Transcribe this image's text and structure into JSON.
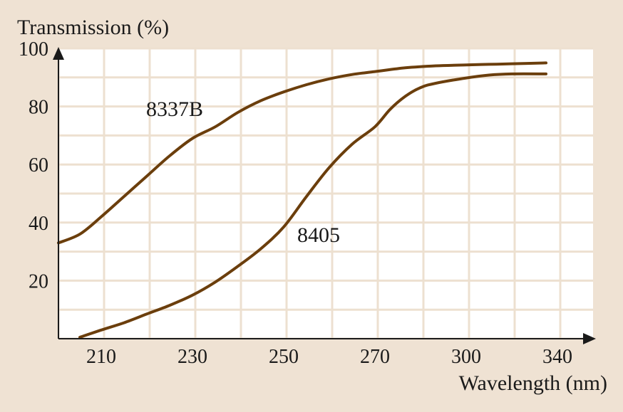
{
  "colors": {
    "background": "#efe2d3",
    "plot_area": "#ffffff",
    "grid": "#ede0d0",
    "axis": "#1a1a1a",
    "curve": "#6b3e0c"
  },
  "chart_data": {
    "type": "line",
    "ylabel": "Transmission (%)",
    "xlabel": "Wavelength (nm)",
    "x_ticks": [
      {
        "label": "210",
        "value": 210
      },
      {
        "label": "230",
        "value": 230
      },
      {
        "label": "250",
        "value": 250
      },
      {
        "label": "270",
        "value": 270
      },
      {
        "label": "300",
        "value": 300
      },
      {
        "label": "340",
        "value": 340
      }
    ],
    "y_ticks": [
      {
        "label": "20",
        "value": 20
      },
      {
        "label": "40",
        "value": 40
      },
      {
        "label": "60",
        "value": 60
      },
      {
        "label": "80",
        "value": 80
      },
      {
        "label": "100",
        "value": 100
      }
    ],
    "ylim": [
      0,
      100
    ],
    "grid": true,
    "series": [
      {
        "name": "8337B",
        "points": [
          [
            200,
            33
          ],
          [
            205,
            36
          ],
          [
            210,
            42
          ],
          [
            215,
            49
          ],
          [
            220,
            56
          ],
          [
            225,
            63
          ],
          [
            230,
            69
          ],
          [
            235,
            73
          ],
          [
            240,
            78
          ],
          [
            245,
            82
          ],
          [
            250,
            85
          ],
          [
            255,
            87.5
          ],
          [
            260,
            89.5
          ],
          [
            265,
            91
          ],
          [
            270,
            92
          ],
          [
            280,
            93.3
          ],
          [
            290,
            94
          ],
          [
            300,
            94.3
          ],
          [
            310,
            94.5
          ],
          [
            320,
            94.7
          ],
          [
            335,
            95
          ]
        ]
      },
      {
        "name": "8405",
        "points": [
          [
            205,
            0.5
          ],
          [
            210,
            3
          ],
          [
            215,
            5.5
          ],
          [
            220,
            8.5
          ],
          [
            225,
            11.5
          ],
          [
            230,
            15
          ],
          [
            235,
            19.5
          ],
          [
            240,
            25
          ],
          [
            245,
            31
          ],
          [
            250,
            38.5
          ],
          [
            255,
            49
          ],
          [
            260,
            59
          ],
          [
            265,
            67
          ],
          [
            270,
            73
          ],
          [
            275,
            79
          ],
          [
            280,
            83.5
          ],
          [
            285,
            86.5
          ],
          [
            290,
            88
          ],
          [
            300,
            89.8
          ],
          [
            310,
            90.8
          ],
          [
            320,
            91.2
          ],
          [
            335,
            91.2
          ]
        ]
      }
    ]
  }
}
